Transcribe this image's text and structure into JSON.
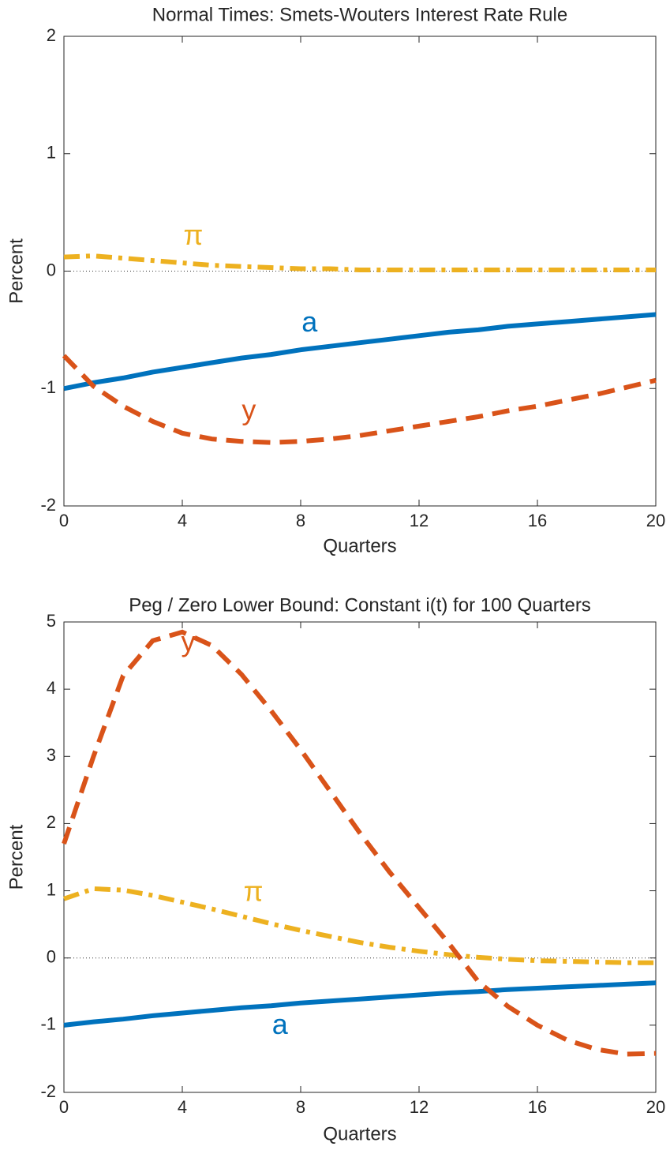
{
  "chart_data": [
    {
      "type": "line",
      "title": "Normal Times: Smets-Wouters Interest Rate Rule",
      "xlabel": "Quarters",
      "ylabel": "Percent",
      "x": [
        0,
        1,
        2,
        3,
        4,
        5,
        6,
        7,
        8,
        9,
        10,
        11,
        12,
        13,
        14,
        15,
        16,
        17,
        18,
        19,
        20
      ],
      "xlim": [
        0,
        20
      ],
      "xticks": [
        0,
        4,
        8,
        12,
        16,
        20
      ],
      "ylim": [
        -2,
        2
      ],
      "yticks": [
        -2,
        -1,
        0,
        1,
        2
      ],
      "zero_line": 0,
      "series": [
        {
          "name": "π",
          "color": "#EDB120",
          "linestyle": "dashdot",
          "label_at": [
            4.37,
            0.29
          ],
          "values": [
            0.12,
            0.13,
            0.11,
            0.09,
            0.07,
            0.05,
            0.04,
            0.03,
            0.02,
            0.02,
            0.01,
            0.01,
            0.01,
            0.01,
            0.01,
            0.01,
            0.01,
            0.01,
            0.01,
            0.01,
            0.01
          ]
        },
        {
          "name": "a",
          "color": "#0072BD",
          "linestyle": "solid",
          "label_at": [
            8.3,
            -0.45
          ],
          "values": [
            -1,
            -0.95,
            -0.91,
            -0.86,
            -0.82,
            -0.78,
            -0.74,
            -0.71,
            -0.67,
            -0.64,
            -0.61,
            -0.58,
            -0.55,
            -0.52,
            -0.5,
            -0.47,
            -0.45,
            -0.43,
            -0.41,
            -0.39,
            -0.37
          ]
        },
        {
          "name": "y",
          "color": "#D95319",
          "linestyle": "dashed",
          "label_at": [
            6.25,
            -1.2
          ],
          "values": [
            -0.72,
            -0.98,
            -1.15,
            -1.28,
            -1.38,
            -1.43,
            -1.45,
            -1.46,
            -1.45,
            -1.43,
            -1.4,
            -1.36,
            -1.32,
            -1.28,
            -1.24,
            -1.19,
            -1.15,
            -1.1,
            -1.05,
            -0.99,
            -0.93
          ]
        }
      ]
    },
    {
      "type": "line",
      "title": "Peg / Zero Lower Bound: Constant i(t) for 100 Quarters",
      "xlabel": "Quarters",
      "ylabel": "Percent",
      "x": [
        0,
        1,
        2,
        3,
        4,
        5,
        6,
        7,
        8,
        9,
        10,
        11,
        12,
        13,
        14,
        15,
        16,
        17,
        18,
        19,
        20
      ],
      "xlim": [
        0,
        20
      ],
      "xticks": [
        0,
        4,
        8,
        12,
        16,
        20
      ],
      "ylim": [
        -2,
        5
      ],
      "yticks": [
        -2,
        -1,
        0,
        1,
        2,
        3,
        4,
        5
      ],
      "zero_line": 0,
      "series": [
        {
          "name": "π",
          "color": "#EDB120",
          "linestyle": "dashdot",
          "label_at": [
            6.4,
            0.96
          ],
          "values": [
            0.88,
            1.03,
            1.01,
            0.93,
            0.83,
            0.73,
            0.62,
            0.51,
            0.41,
            0.32,
            0.23,
            0.16,
            0.1,
            0.05,
            0.01,
            -0.02,
            -0.04,
            -0.05,
            -0.06,
            -0.07,
            -0.07
          ]
        },
        {
          "name": "a",
          "color": "#0072BD",
          "linestyle": "solid",
          "label_at": [
            7.3,
            -1.02
          ],
          "values": [
            -1,
            -0.95,
            -0.91,
            -0.86,
            -0.82,
            -0.78,
            -0.74,
            -0.71,
            -0.67,
            -0.64,
            -0.61,
            -0.58,
            -0.55,
            -0.52,
            -0.5,
            -0.47,
            -0.45,
            -0.43,
            -0.41,
            -0.39,
            -0.37
          ]
        },
        {
          "name": "y",
          "color": "#D95319",
          "linestyle": "dashed",
          "label_at": [
            4.2,
            4.68
          ],
          "values": [
            1.7,
            3.0,
            4.2,
            4.72,
            4.85,
            4.65,
            4.22,
            3.68,
            3.1,
            2.48,
            1.86,
            1.28,
            0.75,
            0.22,
            -0.35,
            -0.72,
            -1.0,
            -1.22,
            -1.36,
            -1.43,
            -1.42
          ]
        }
      ]
    }
  ]
}
